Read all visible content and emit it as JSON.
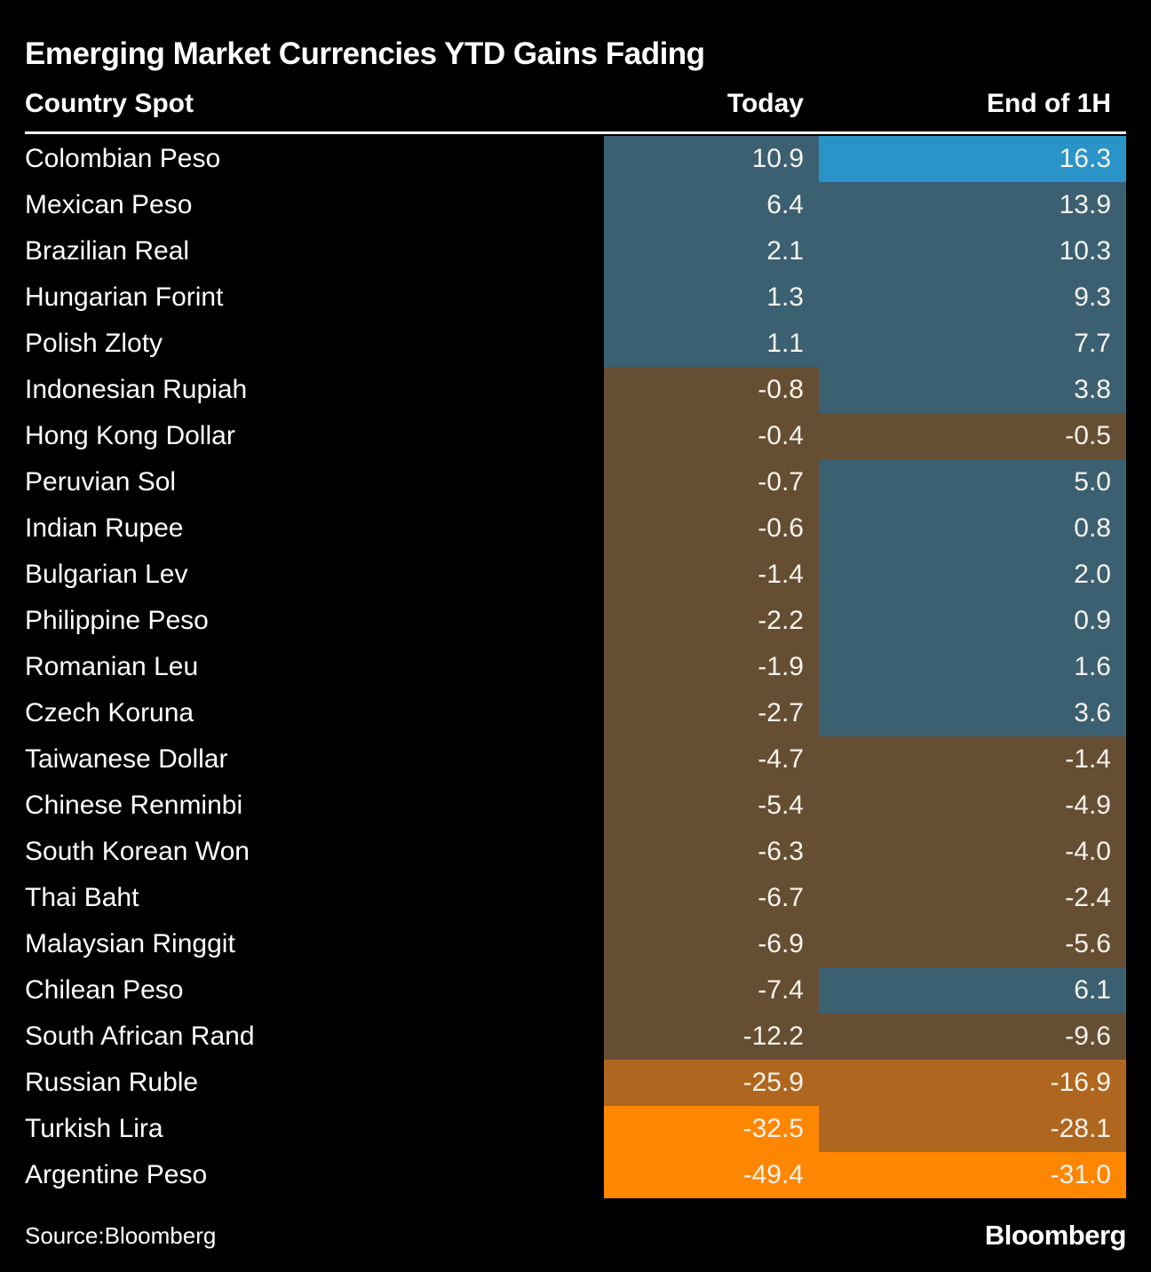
{
  "title": "Emerging Market Currencies YTD Gains Fading",
  "footer": {
    "source": "Source:Bloomberg",
    "brand": "Bloomberg"
  },
  "palette": {
    "background": "#000000",
    "label_text": "#ffffff",
    "value_text": "#f7f3ec",
    "bright_blue": "#2a94c9",
    "slate_blue": "#3b6072",
    "brown": "#664e33",
    "ochre": "#af661f",
    "orange": "#fe8600"
  },
  "chart_data": {
    "type": "heatmap",
    "title": "Emerging Market Currencies YTD Gains Fading",
    "columns": [
      "Country Spot",
      "Today",
      "End of 1H"
    ],
    "rows": [
      {
        "name": "Colombian Peso",
        "today": 10.9,
        "end_of_1h": 16.3,
        "today_color": "slate_blue",
        "end_color": "bright_blue"
      },
      {
        "name": "Mexican Peso",
        "today": 6.4,
        "end_of_1h": 13.9,
        "today_color": "slate_blue",
        "end_color": "slate_blue"
      },
      {
        "name": "Brazilian Real",
        "today": 2.1,
        "end_of_1h": 10.3,
        "today_color": "slate_blue",
        "end_color": "slate_blue"
      },
      {
        "name": "Hungarian Forint",
        "today": 1.3,
        "end_of_1h": 9.3,
        "today_color": "slate_blue",
        "end_color": "slate_blue"
      },
      {
        "name": "Polish Zloty",
        "today": 1.1,
        "end_of_1h": 7.7,
        "today_color": "slate_blue",
        "end_color": "slate_blue"
      },
      {
        "name": "Indonesian Rupiah",
        "today": -0.8,
        "end_of_1h": 3.8,
        "today_color": "brown",
        "end_color": "slate_blue"
      },
      {
        "name": "Hong Kong Dollar",
        "today": -0.4,
        "end_of_1h": -0.5,
        "today_color": "brown",
        "end_color": "brown"
      },
      {
        "name": "Peruvian Sol",
        "today": -0.7,
        "end_of_1h": 5.0,
        "today_color": "brown",
        "end_color": "slate_blue"
      },
      {
        "name": "Indian Rupee",
        "today": -0.6,
        "end_of_1h": 0.8,
        "today_color": "brown",
        "end_color": "slate_blue"
      },
      {
        "name": "Bulgarian Lev",
        "today": -1.4,
        "end_of_1h": 2.0,
        "today_color": "brown",
        "end_color": "slate_blue"
      },
      {
        "name": "Philippine Peso",
        "today": -2.2,
        "end_of_1h": 0.9,
        "today_color": "brown",
        "end_color": "slate_blue"
      },
      {
        "name": "Romanian Leu",
        "today": -1.9,
        "end_of_1h": 1.6,
        "today_color": "brown",
        "end_color": "slate_blue"
      },
      {
        "name": "Czech Koruna",
        "today": -2.7,
        "end_of_1h": 3.6,
        "today_color": "brown",
        "end_color": "slate_blue"
      },
      {
        "name": "Taiwanese Dollar",
        "today": -4.7,
        "end_of_1h": -1.4,
        "today_color": "brown",
        "end_color": "brown"
      },
      {
        "name": "Chinese Renminbi",
        "today": -5.4,
        "end_of_1h": -4.9,
        "today_color": "brown",
        "end_color": "brown"
      },
      {
        "name": "South Korean Won",
        "today": -6.3,
        "end_of_1h": -4.0,
        "today_color": "brown",
        "end_color": "brown"
      },
      {
        "name": "Thai Baht",
        "today": -6.7,
        "end_of_1h": -2.4,
        "today_color": "brown",
        "end_color": "brown"
      },
      {
        "name": "Malaysian Ringgit",
        "today": -6.9,
        "end_of_1h": -5.6,
        "today_color": "brown",
        "end_color": "brown"
      },
      {
        "name": "Chilean Peso",
        "today": -7.4,
        "end_of_1h": 6.1,
        "today_color": "brown",
        "end_color": "slate_blue"
      },
      {
        "name": "South African Rand",
        "today": -12.2,
        "end_of_1h": -9.6,
        "today_color": "brown",
        "end_color": "brown"
      },
      {
        "name": "Russian Ruble",
        "today": -25.9,
        "end_of_1h": -16.9,
        "today_color": "ochre",
        "end_color": "ochre"
      },
      {
        "name": "Turkish Lira",
        "today": -32.5,
        "end_of_1h": -28.1,
        "today_color": "orange",
        "end_color": "ochre"
      },
      {
        "name": "Argentine Peso",
        "today": -49.4,
        "end_of_1h": -31.0,
        "today_color": "orange",
        "end_color": "orange"
      }
    ]
  }
}
